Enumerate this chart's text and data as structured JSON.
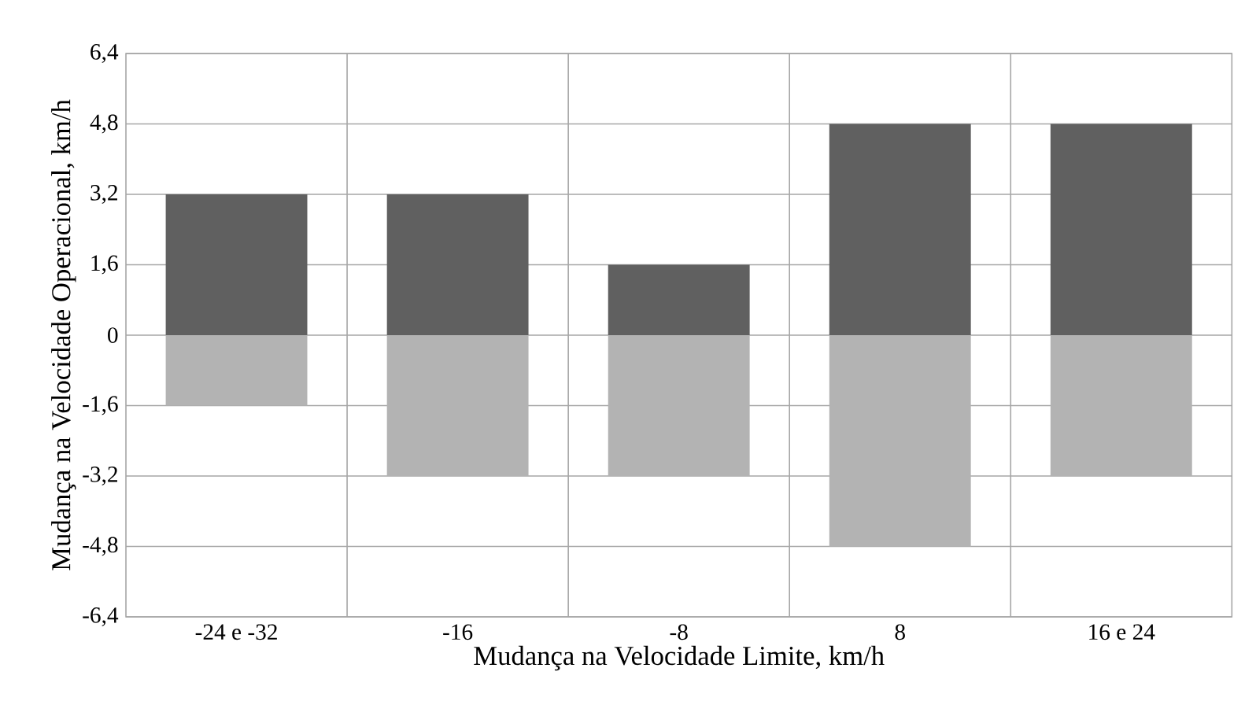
{
  "chart_data": {
    "type": "bar",
    "xlabel": "Mudança na Velocidade Limite, km/h",
    "ylabel": "Mudança na Velocidade Operacional, km/h",
    "categories": [
      "-24 e -32",
      "-16",
      "-8",
      "8",
      "16 e 24"
    ],
    "series": [
      {
        "color": "#606060",
        "values": [
          3.2,
          3.2,
          1.6,
          4.8,
          4.8
        ]
      },
      {
        "color": "#b3b3b3",
        "values": [
          -1.6,
          -3.2,
          -3.2,
          -4.8,
          -3.2
        ]
      }
    ],
    "stacked": true,
    "ylim": [
      -6.4,
      6.4
    ],
    "yticks": [
      {
        "value": -6.4,
        "label": "-6,4"
      },
      {
        "value": -4.8,
        "label": "-4,8"
      },
      {
        "value": -3.2,
        "label": "-3,2"
      },
      {
        "value": -1.6,
        "label": "-1,6"
      },
      0,
      {
        "value": 1.6,
        "label": "1,6"
      },
      {
        "value": 3.2,
        "label": "3,2"
      },
      {
        "value": 4.8,
        "label": "4,8"
      },
      {
        "value": 6.4,
        "label": "6,4"
      }
    ],
    "grid": true
  }
}
